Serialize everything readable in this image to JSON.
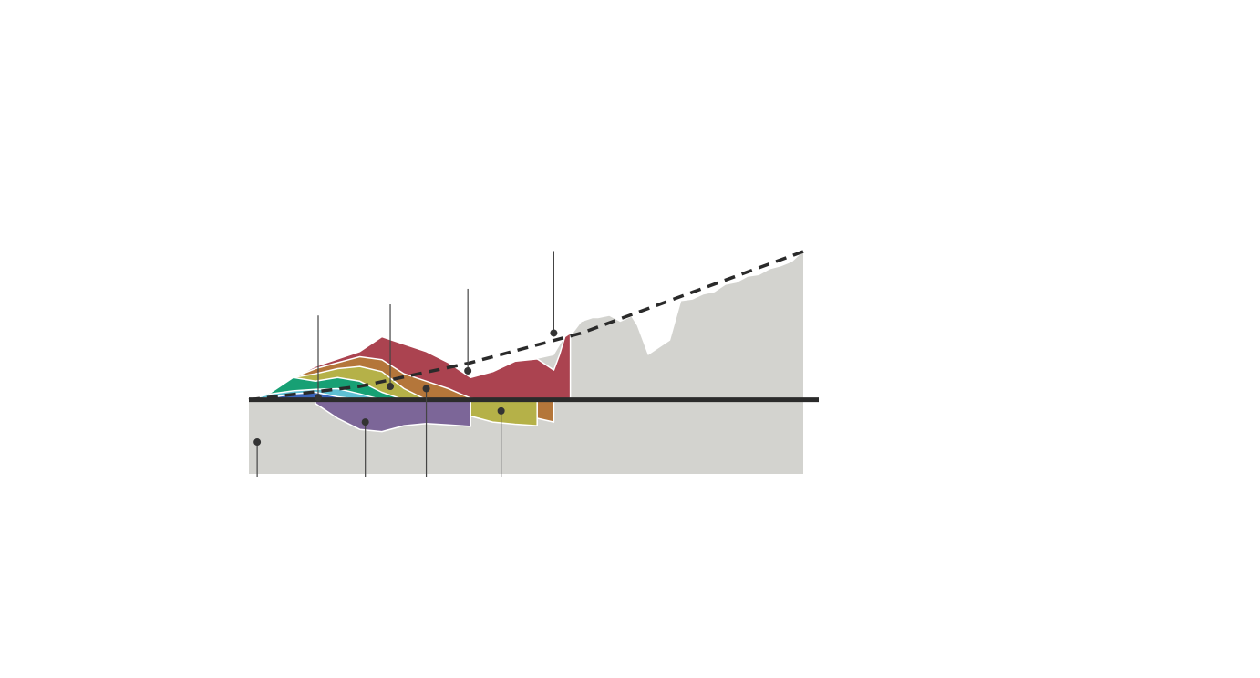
{
  "chart_data": {
    "type": "area",
    "title": "",
    "xlabel": "",
    "ylabel": "",
    "grid": false,
    "legend": "none",
    "x_range": [
      0,
      100
    ],
    "y_range": [
      -10,
      20
    ],
    "baseline": 0,
    "background_series": {
      "color": "#d3d3cf",
      "x": [
        0,
        4,
        8,
        12,
        16,
        20,
        24,
        28,
        32,
        36,
        40,
        44,
        48,
        52,
        55,
        57,
        58,
        60,
        62,
        63,
        65,
        67,
        69,
        70,
        72,
        74,
        76,
        78,
        80,
        82,
        84,
        86,
        88,
        90,
        92,
        94,
        96,
        98,
        100
      ],
      "values": [
        0,
        1,
        3,
        4.5,
        5.5,
        6.5,
        8.5,
        7.5,
        6.5,
        5,
        3,
        3.8,
        5.2,
        5.5,
        6,
        8.5,
        8.5,
        10.5,
        11,
        11,
        11.3,
        10.5,
        11.2,
        10,
        6,
        7,
        8,
        13.3,
        13.5,
        14.2,
        14.5,
        15.5,
        15.8,
        16.6,
        16.8,
        17.6,
        18,
        18.6,
        20
      ]
    },
    "background_lower_bound": -10,
    "series": [
      {
        "color": "#ab4350",
        "x": [
          0,
          4,
          8,
          12,
          16,
          20,
          24,
          28,
          32,
          36,
          40,
          44,
          48,
          52,
          55,
          56,
          57,
          58
        ],
        "values": [
          0,
          1,
          3,
          4.5,
          5.5,
          6.5,
          8.5,
          7.5,
          6.5,
          5,
          3,
          3.8,
          5.2,
          5.5,
          4,
          6,
          8.5,
          9
        ]
      },
      {
        "color": "#b4763a",
        "x": [
          0,
          4,
          8,
          12,
          16,
          20,
          24,
          28,
          32,
          36,
          40,
          44,
          48,
          52,
          55
        ],
        "values": [
          0,
          1,
          3,
          4.2,
          5,
          5.8,
          5.4,
          3.5,
          2.5,
          1.5,
          0.2,
          -0.5,
          -1.2,
          -2.5,
          -3
        ]
      },
      {
        "color": "#b5b148",
        "x": [
          0,
          4,
          8,
          12,
          16,
          20,
          24,
          28,
          32,
          36,
          40,
          44,
          48,
          52
        ],
        "values": [
          0,
          1,
          3,
          3.5,
          4.2,
          4.5,
          3.8,
          1.5,
          0,
          -1.2,
          -2.2,
          -3,
          -3.3,
          -3.5
        ]
      },
      {
        "color": "#17a074",
        "x": [
          0,
          4,
          8,
          12,
          16,
          20,
          24,
          28,
          32
        ],
        "values": [
          0,
          1,
          3,
          2.5,
          3,
          2.5,
          1,
          -1,
          -3
        ]
      },
      {
        "color": "#5ebfd3",
        "x": [
          0,
          4,
          8,
          12,
          16,
          20,
          24,
          28,
          32
        ],
        "values": [
          0,
          0.8,
          1.2,
          1.4,
          1.5,
          0.8,
          -1,
          -2.5,
          -3
        ]
      },
      {
        "color": "#3a63b8",
        "x": [
          0,
          4,
          8,
          12,
          16,
          20,
          24
        ],
        "values": [
          0,
          0.3,
          0.8,
          1,
          0.4,
          -0.3,
          -1
        ]
      },
      {
        "color": "#7c6698",
        "x": [
          12,
          16,
          20,
          24,
          28,
          32,
          36,
          40
        ],
        "values": [
          -0.5,
          -2.5,
          -4,
          -4.3,
          -3.5,
          -3.2,
          -3.4,
          -3.6
        ]
      }
    ],
    "trend_line": {
      "style": "dashed",
      "color": "#2a2a2a",
      "x": [
        0,
        20,
        40,
        60,
        80,
        100
      ],
      "values": [
        0,
        1.8,
        5,
        9,
        14.5,
        20
      ]
    },
    "annotation_points": [
      {
        "x": 1.5,
        "y": -5.7,
        "leader": "down"
      },
      {
        "x": 12.5,
        "y": 0.3,
        "leader": "up"
      },
      {
        "x": 21,
        "y": -3,
        "leader": "down"
      },
      {
        "x": 25.5,
        "y": 1.8,
        "leader": "up"
      },
      {
        "x": 32,
        "y": 1.5,
        "leader": "down"
      },
      {
        "x": 39.5,
        "y": 3.9,
        "leader": "up"
      },
      {
        "x": 45.5,
        "y": -1.5,
        "leader": "down"
      },
      {
        "x": 55,
        "y": 9,
        "leader": "up"
      }
    ]
  }
}
